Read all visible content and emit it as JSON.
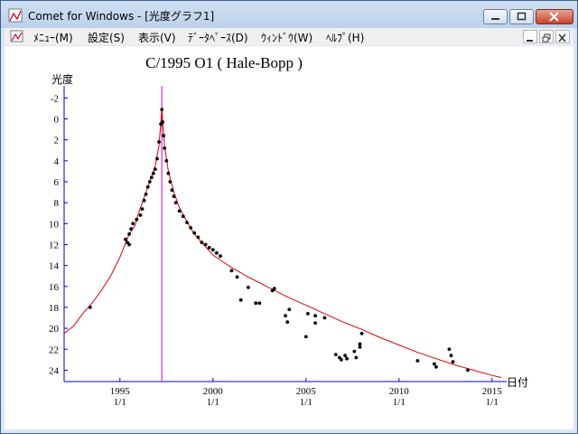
{
  "window": {
    "title": "Comet for Windows - [光度グラフ1]"
  },
  "menu": {
    "items": [
      "ﾒﾆｭｰ(M)",
      "設定(S)",
      "表示(V)",
      "ﾃﾞｰﾀﾍﾞｰｽ(D)",
      "ｳｨﾝﾄﾞｳ(W)",
      "ﾍﾙﾌﾟ(H)"
    ]
  },
  "colors": {
    "curve": "#dd0000",
    "perihelion_line": "#cc00cc",
    "axis": "#0000cc",
    "points": "#000000"
  },
  "chart_data": {
    "type": "scatter",
    "title": "C/1995 O1 ( Hale-Bopp )",
    "ylabel": "光度",
    "xlabel": "日付",
    "ylim": [
      -3,
      25
    ],
    "y_inverted": true,
    "yticks": [
      -2,
      0,
      2,
      4,
      6,
      8,
      10,
      12,
      14,
      16,
      18,
      20,
      22,
      24
    ],
    "xlim": [
      1992.0,
      2015.6
    ],
    "xticks": [
      {
        "value": 1995,
        "label": "1995",
        "sublabel": "1/1"
      },
      {
        "value": 2000,
        "label": "2000",
        "sublabel": "1/1"
      },
      {
        "value": 2005,
        "label": "2005",
        "sublabel": "1/1"
      },
      {
        "value": 2010,
        "label": "2010",
        "sublabel": "1/1"
      },
      {
        "value": 2015,
        "label": "2015",
        "sublabel": "1/1"
      }
    ],
    "perihelion": 1997.25,
    "predicted_curve": [
      [
        1992.0,
        20.5
      ],
      [
        1992.5,
        19.8
      ],
      [
        1993.0,
        18.6
      ],
      [
        1993.5,
        17.6
      ],
      [
        1994.0,
        16.4
      ],
      [
        1994.5,
        15.0
      ],
      [
        1995.0,
        13.2
      ],
      [
        1995.5,
        11.0
      ],
      [
        1995.8,
        10.2
      ],
      [
        1996.0,
        9.0
      ],
      [
        1996.3,
        7.5
      ],
      [
        1996.6,
        6.0
      ],
      [
        1996.9,
        4.5
      ],
      [
        1997.1,
        2.5
      ],
      [
        1997.25,
        -1.0
      ],
      [
        1997.4,
        2.6
      ],
      [
        1997.6,
        5.0
      ],
      [
        1997.9,
        7.0
      ],
      [
        1998.2,
        8.5
      ],
      [
        1998.6,
        9.8
      ],
      [
        1999.0,
        11.0
      ],
      [
        1999.5,
        12.0
      ],
      [
        2000.0,
        13.0
      ],
      [
        2000.5,
        13.6
      ],
      [
        2001.0,
        14.2
      ],
      [
        2002.0,
        15.2
      ],
      [
        2003.0,
        16.1
      ],
      [
        2004.0,
        17.0
      ],
      [
        2005.0,
        17.8
      ],
      [
        2006.0,
        18.6
      ],
      [
        2007.0,
        19.4
      ],
      [
        2008.0,
        20.1
      ],
      [
        2009.0,
        20.9
      ],
      [
        2010.0,
        21.6
      ],
      [
        2011.0,
        22.3
      ],
      [
        2012.0,
        22.9
      ],
      [
        2013.0,
        23.5
      ],
      [
        2014.0,
        24.0
      ],
      [
        2015.0,
        24.5
      ],
      [
        2015.5,
        24.7
      ]
    ],
    "observations": [
      [
        1993.4,
        18.0
      ],
      [
        1995.3,
        11.5
      ],
      [
        1995.4,
        11.8
      ],
      [
        1995.5,
        11.0
      ],
      [
        1995.6,
        10.5
      ],
      [
        1995.7,
        10.0
      ],
      [
        1995.5,
        12.0
      ],
      [
        1995.9,
        9.6
      ],
      [
        1996.1,
        9.2
      ],
      [
        1996.2,
        8.6
      ],
      [
        1996.3,
        7.8
      ],
      [
        1996.4,
        7.2
      ],
      [
        1996.5,
        6.5
      ],
      [
        1996.6,
        6.0
      ],
      [
        1996.7,
        5.6
      ],
      [
        1996.8,
        5.2
      ],
      [
        1996.9,
        4.8
      ],
      [
        1997.0,
        3.8
      ],
      [
        1997.1,
        2.2
      ],
      [
        1997.2,
        0.5
      ],
      [
        1997.25,
        -0.9
      ],
      [
        1997.3,
        0.3
      ],
      [
        1997.35,
        1.6
      ],
      [
        1997.4,
        2.8
      ],
      [
        1997.5,
        4.0
      ],
      [
        1997.6,
        5.2
      ],
      [
        1997.7,
        6.0
      ],
      [
        1997.8,
        6.8
      ],
      [
        1997.9,
        7.4
      ],
      [
        1998.0,
        8.0
      ],
      [
        1998.2,
        8.8
      ],
      [
        1998.4,
        9.3
      ],
      [
        1998.6,
        9.9
      ],
      [
        1998.8,
        10.4
      ],
      [
        1999.0,
        10.9
      ],
      [
        1999.2,
        11.3
      ],
      [
        1999.4,
        11.8
      ],
      [
        1999.6,
        12.0
      ],
      [
        1999.8,
        12.3
      ],
      [
        2000.0,
        12.5
      ],
      [
        2000.2,
        12.8
      ],
      [
        2000.4,
        13.1
      ],
      [
        2001.0,
        14.5
      ],
      [
        2001.3,
        15.1
      ],
      [
        2001.5,
        17.3
      ],
      [
        2001.9,
        16.1
      ],
      [
        2002.3,
        17.6
      ],
      [
        2002.5,
        17.6
      ],
      [
        2003.2,
        16.4
      ],
      [
        2003.3,
        16.2
      ],
      [
        2003.9,
        18.8
      ],
      [
        2004.0,
        19.4
      ],
      [
        2004.1,
        18.2
      ],
      [
        2005.0,
        20.8
      ],
      [
        2005.1,
        18.6
      ],
      [
        2005.5,
        19.5
      ],
      [
        2005.5,
        18.8
      ],
      [
        2006.0,
        19.0
      ],
      [
        2006.6,
        22.5
      ],
      [
        2006.8,
        22.8
      ],
      [
        2006.9,
        23.0
      ],
      [
        2007.1,
        22.6
      ],
      [
        2007.2,
        22.9
      ],
      [
        2007.6,
        22.2
      ],
      [
        2007.7,
        22.8
      ],
      [
        2007.9,
        21.8
      ],
      [
        2007.9,
        21.5
      ],
      [
        2008.0,
        20.5
      ],
      [
        2011.0,
        23.1
      ],
      [
        2011.9,
        23.4
      ],
      [
        2012.0,
        23.7
      ],
      [
        2012.7,
        22.0
      ],
      [
        2012.8,
        22.6
      ],
      [
        2012.9,
        23.2
      ],
      [
        2013.7,
        24.0
      ]
    ]
  }
}
